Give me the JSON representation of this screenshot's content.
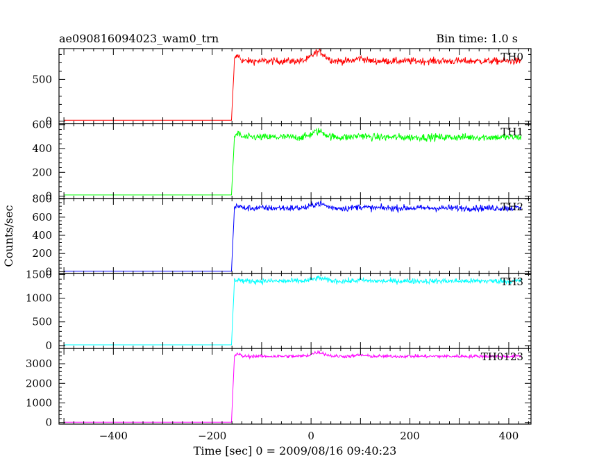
{
  "chart_data": {
    "type": "line",
    "title": "ae090816094023_wam0_trn",
    "bin_label": "Bin time: 1.0 s",
    "xlabel": "Time [sec] 0 = 2009/08/16 09:40:23",
    "ylabel": "Counts/sec",
    "xlim": [
      -510,
      445
    ],
    "x_ticks": [
      -400,
      -200,
      0,
      200,
      400
    ],
    "x_tick_labels": [
      "−400",
      "−200",
      "0",
      "200",
      "400"
    ],
    "series": [
      {
        "name": "TH0",
        "color": "#ff0000",
        "ylim": [
          -30,
          870
        ],
        "yticks": [
          0,
          500
        ],
        "pre": 10,
        "post": 720,
        "noise": 30,
        "peak": 110
      },
      {
        "name": "TH1",
        "color": "#00ff00",
        "ylim": [
          -20,
          610
        ],
        "yticks": [
          0,
          200,
          400,
          600
        ],
        "pre": 10,
        "post": 495,
        "noise": 22,
        "peak": 50
      },
      {
        "name": "TH2",
        "color": "#0000ff",
        "ylim": [
          -20,
          805
        ],
        "yticks": [
          0,
          200,
          400,
          600,
          800
        ],
        "pre": 5,
        "post": 700,
        "noise": 25,
        "peak": 50
      },
      {
        "name": "TH3",
        "color": "#00ffff",
        "ylim": [
          -60,
          1520
        ],
        "yticks": [
          0,
          500,
          1000,
          1500
        ],
        "pre": 15,
        "post": 1360,
        "noise": 40,
        "peak": 60
      },
      {
        "name": "TH0123",
        "color": "#ff00ff",
        "ylim": [
          -80,
          3780
        ],
        "yticks": [
          0,
          1000,
          2000,
          3000
        ],
        "pre": 20,
        "post": 3380,
        "noise": 60,
        "peak": 200
      }
    ],
    "onset_x": -160,
    "data_end_x": 425,
    "data_start_x": -500
  }
}
